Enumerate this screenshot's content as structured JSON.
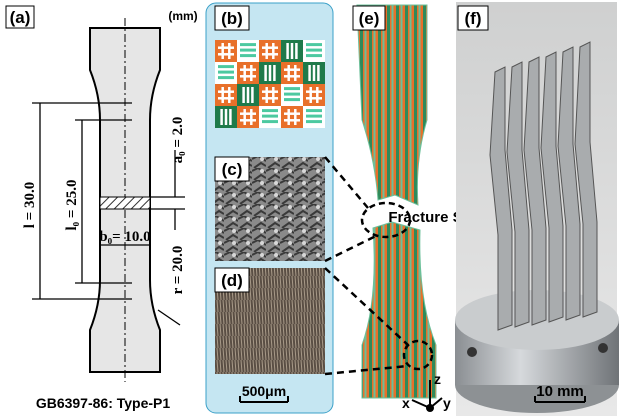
{
  "panels": {
    "a": {
      "label": "(a)",
      "unit": "(mm)",
      "l": "l = 30.0",
      "lo": "l₀ = 25.0",
      "ao": "a₀ = 2.0",
      "bo": "b₀= 10.0",
      "r": "r = 20.0",
      "caption": "GB6397-86: Type-P1"
    },
    "b": {
      "label": "(b)"
    },
    "c": {
      "label": "(c)"
    },
    "d": {
      "label": "(d)"
    },
    "scale_bcd": "500μm",
    "e": {
      "label": "(e)",
      "annotation": "Fracture Surface",
      "axes": {
        "z": "z",
        "x": "x",
        "y": "y"
      }
    },
    "f": {
      "label": "(f)",
      "scale": "10 mm"
    }
  }
}
